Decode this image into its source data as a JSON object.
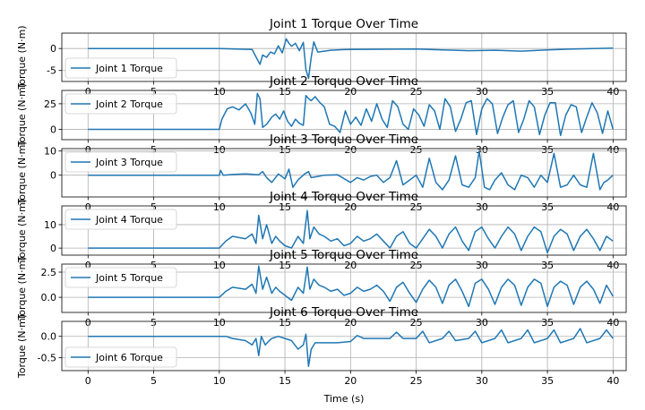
{
  "chart_data": [
    {
      "type": "line",
      "title": "Joint 1 Torque Over Time",
      "ylabel": "Torque (N·m)",
      "xlabel": "",
      "xlim": [
        -2,
        41
      ],
      "ylim": [
        -7.5,
        3.5
      ],
      "yticks": [
        0,
        -5
      ],
      "xticks": [
        0,
        5,
        10,
        15,
        20,
        25,
        30,
        35,
        40
      ],
      "grid": true,
      "legend_position": "lower-left",
      "series": [
        {
          "name": "Joint 1 Torque",
          "x": [
            0,
            10,
            12.5,
            12.9,
            13.1,
            13.3,
            13.6,
            13.9,
            14.2,
            14.5,
            14.8,
            15.1,
            15.3,
            15.5,
            15.8,
            16.1,
            16.4,
            16.6,
            16.8,
            17.0,
            17.2,
            17.5,
            18,
            18.5,
            19,
            20,
            25,
            27,
            29,
            31,
            33,
            35,
            37,
            40
          ],
          "y": [
            0,
            0,
            -0.2,
            -2.5,
            -3.6,
            -1.5,
            -2.0,
            -0.8,
            -1.2,
            0.6,
            -1.0,
            2.2,
            1.2,
            0.5,
            1.2,
            -0.5,
            1.4,
            -4.8,
            -6.8,
            -2.0,
            1.5,
            -0.8,
            -0.6,
            -0.4,
            -0.3,
            -0.2,
            -0.1,
            -0.3,
            -0.5,
            -0.4,
            -0.6,
            -0.3,
            -0.1,
            0.1
          ]
        }
      ]
    },
    {
      "type": "line",
      "title": "Joint 2 Torque Over Time",
      "ylabel": "Torque (N·m)",
      "xlabel": "",
      "xlim": [
        -2,
        41
      ],
      "ylim": [
        -10,
        38
      ],
      "yticks": [
        25,
        0
      ],
      "xticks": [
        0,
        5,
        10,
        15,
        20,
        25,
        30,
        35,
        40
      ],
      "grid": true,
      "legend_position": "upper-left",
      "series": [
        {
          "name": "Joint 2 Torque",
          "x": [
            0,
            10,
            10.2,
            10.6,
            11,
            11.5,
            12,
            12.4,
            12.7,
            12.9,
            13.1,
            13.3,
            13.6,
            14,
            14.3,
            14.6,
            14.9,
            15.2,
            15.5,
            15.8,
            16.1,
            16.4,
            16.6,
            16.8,
            17.0,
            17.3,
            17.6,
            18,
            18.4,
            18.8,
            19.2,
            19.6,
            20,
            20.4,
            20.8,
            21.2,
            21.6,
            22,
            22.4,
            22.8,
            23.2,
            23.6,
            24,
            24.4,
            24.8,
            25.2,
            25.6,
            26,
            26.4,
            26.8,
            27.2,
            27.6,
            28,
            28.4,
            28.8,
            29.2,
            29.6,
            30,
            30.4,
            30.8,
            31.2,
            31.6,
            32,
            32.4,
            32.8,
            33.2,
            33.6,
            34,
            34.4,
            34.8,
            35.2,
            35.6,
            36,
            36.4,
            36.8,
            37.2,
            37.6,
            38,
            38.4,
            38.8,
            39.2,
            39.6,
            40
          ],
          "y": [
            0,
            0,
            10,
            20,
            22,
            19,
            25,
            16,
            5,
            35,
            30,
            2,
            5,
            12,
            15,
            10,
            18,
            8,
            3,
            10,
            6,
            4,
            33,
            30,
            28,
            32,
            27,
            22,
            5,
            3,
            -3,
            18,
            5,
            12,
            4,
            20,
            8,
            25,
            10,
            2,
            28,
            22,
            5,
            0,
            20,
            14,
            3,
            24,
            18,
            0,
            30,
            22,
            -2,
            10,
            26,
            28,
            -5,
            20,
            30,
            25,
            -4,
            12,
            24,
            28,
            -3,
            10,
            28,
            22,
            -5,
            14,
            26,
            26,
            -6,
            14,
            24,
            22,
            -3,
            12,
            26,
            16,
            -4,
            18,
            0
          ]
        }
      ]
    },
    {
      "type": "line",
      "title": "Joint 3 Torque Over Time",
      "ylabel": "Torque (N·m)",
      "xlabel": "",
      "xlim": [
        -2,
        41
      ],
      "ylim": [
        -9,
        11
      ],
      "yticks": [
        10,
        0
      ],
      "xticks": [
        0,
        5,
        10,
        15,
        20,
        25,
        30,
        35,
        40
      ],
      "grid": true,
      "legend_position": "upper-left",
      "series": [
        {
          "name": "Joint 3 Torque",
          "x": [
            0,
            10,
            10.1,
            10.3,
            11,
            12,
            13,
            13.3,
            13.6,
            14,
            14.5,
            15,
            15.3,
            15.6,
            16,
            16.5,
            16.8,
            17,
            17.5,
            18,
            19,
            20,
            20.5,
            21,
            21.5,
            22,
            22.5,
            23,
            23.5,
            24,
            24.5,
            25,
            25.5,
            26,
            26.5,
            27,
            27.5,
            28,
            28.5,
            29,
            29.5,
            29.8,
            30.2,
            30.6,
            31,
            31.5,
            32,
            32.5,
            33,
            33.5,
            34,
            34.5,
            35,
            35.5,
            36,
            36.5,
            37,
            37.5,
            38,
            38.5,
            39,
            39.3,
            39.6,
            40
          ],
          "y": [
            0,
            0,
            2,
            0,
            0.3,
            0.5,
            0.2,
            1.5,
            -1,
            -3,
            0.5,
            -1.5,
            2.5,
            -5,
            -2,
            0.5,
            1.5,
            -1,
            -0.5,
            0,
            0.2,
            -3,
            -1,
            -2,
            -0.5,
            0,
            -3,
            -1,
            6,
            -4,
            -2,
            0,
            -5,
            7,
            -3,
            -6,
            -2,
            8,
            -4,
            -5,
            -1,
            10,
            -5,
            -6,
            -2,
            1,
            -4,
            -6,
            0,
            -1,
            -5,
            0,
            -3,
            9,
            -5,
            -4,
            0,
            -4,
            -5,
            9,
            -6,
            -3,
            -2,
            0
          ]
        }
      ]
    },
    {
      "type": "line",
      "title": "Joint 4 Torque Over Time",
      "ylabel": "Torque (N·m)",
      "xlabel": "",
      "xlim": [
        -2,
        41
      ],
      "ylim": [
        -3,
        18
      ],
      "yticks": [
        10,
        0
      ],
      "xticks": [
        0,
        5,
        10,
        15,
        20,
        25,
        30,
        35,
        40
      ],
      "grid": true,
      "legend_position": "upper-left",
      "series": [
        {
          "name": "Joint 4 Torque",
          "x": [
            0,
            10,
            10.5,
            11,
            12,
            12.5,
            12.8,
            13.0,
            13.3,
            13.6,
            14,
            14.3,
            14.6,
            15,
            15.5,
            16,
            16.4,
            16.7,
            16.9,
            17.2,
            17.6,
            18,
            18.5,
            19,
            19.5,
            20,
            20.5,
            21,
            21.5,
            22,
            22.5,
            23,
            23.5,
            24,
            24.5,
            25,
            25.5,
            26,
            26.5,
            27,
            27.5,
            28,
            28.5,
            29,
            29.5,
            30,
            30.5,
            31,
            31.5,
            32,
            32.5,
            33,
            33.5,
            34,
            34.5,
            35,
            35.5,
            36,
            36.5,
            37,
            37.5,
            38,
            38.5,
            39,
            39.5,
            40
          ],
          "y": [
            0,
            0,
            3,
            5,
            4,
            6,
            2,
            14,
            4,
            10,
            2,
            5,
            3,
            1,
            0,
            5,
            2,
            16,
            4,
            9,
            6,
            5,
            3,
            4,
            1,
            2,
            5,
            3,
            4,
            6,
            3,
            0,
            5,
            7,
            2,
            0,
            4,
            8,
            5,
            0,
            6,
            9,
            3,
            -1,
            7,
            9,
            4,
            0,
            5,
            9,
            6,
            -1,
            5,
            9,
            7,
            -2,
            5,
            8,
            6,
            -1,
            5,
            8,
            4,
            -1,
            5,
            3
          ]
        }
      ]
    },
    {
      "type": "line",
      "title": "Joint 5 Torque Over Time",
      "ylabel": "Torque (N·m)",
      "xlabel": "",
      "xlim": [
        -2,
        41
      ],
      "ylim": [
        -1.5,
        3.3
      ],
      "yticks": [
        2.5,
        0.0
      ],
      "xticks": [
        0,
        5,
        10,
        15,
        20,
        25,
        30,
        35,
        40
      ],
      "grid": true,
      "legend_position": "upper-left",
      "series": [
        {
          "name": "Joint 5 Torque",
          "x": [
            0,
            10,
            10.5,
            11,
            12,
            12.5,
            12.8,
            13.0,
            13.3,
            13.6,
            14,
            14.3,
            14.6,
            15,
            15.5,
            16,
            16.4,
            16.7,
            16.9,
            17.2,
            17.6,
            18,
            18.5,
            19,
            19.5,
            20,
            20.5,
            21,
            21.5,
            22,
            22.5,
            23,
            23.5,
            24,
            24.5,
            25,
            25.5,
            26,
            26.5,
            27,
            27.5,
            28,
            28.5,
            29,
            29.5,
            30,
            30.5,
            31,
            31.5,
            32,
            32.5,
            33,
            33.5,
            34,
            34.5,
            35,
            35.5,
            36,
            36.5,
            37,
            37.5,
            38,
            38.5,
            39,
            39.5,
            40
          ],
          "y": [
            0,
            0,
            0.6,
            1.0,
            0.8,
            1.3,
            0.4,
            3.1,
            0.8,
            2.0,
            0.4,
            1.0,
            0.6,
            0.2,
            -0.3,
            1.0,
            0.4,
            3.0,
            0.8,
            1.8,
            1.2,
            1.0,
            0.6,
            0.8,
            0.2,
            0.4,
            1.0,
            0.6,
            0.8,
            1.2,
            0.6,
            -0.4,
            1.0,
            1.5,
            0.4,
            -0.5,
            0.8,
            1.7,
            1.0,
            -0.6,
            1.2,
            1.8,
            0.6,
            -0.9,
            1.4,
            1.8,
            0.8,
            -0.7,
            1.0,
            1.8,
            1.2,
            -0.8,
            1.0,
            1.8,
            1.4,
            -0.9,
            1.0,
            1.6,
            1.2,
            -0.7,
            1.0,
            1.6,
            0.8,
            -0.6,
            1.2,
            0.1
          ]
        }
      ]
    },
    {
      "type": "line",
      "title": "Joint 6 Torque Over Time",
      "ylabel": "Torque (N·m)",
      "xlabel": "Time (s)",
      "xlim": [
        -2,
        41
      ],
      "ylim": [
        -0.8,
        0.35
      ],
      "yticks": [
        0.0,
        -0.5
      ],
      "xticks": [
        0,
        5,
        10,
        15,
        20,
        25,
        30,
        35,
        40
      ],
      "grid": true,
      "legend_position": "lower-left",
      "series": [
        {
          "name": "Joint 6 Torque",
          "x": [
            0,
            10,
            10.5,
            11,
            12,
            12.5,
            12.8,
            13.0,
            13.2,
            13.5,
            13.8,
            14,
            14.5,
            15,
            15.5,
            16,
            16.4,
            16.6,
            16.8,
            17.0,
            17.3,
            17.6,
            18,
            19,
            20,
            20.5,
            21,
            22,
            23,
            23.5,
            24,
            25,
            25.5,
            26,
            27,
            27.5,
            28,
            29,
            29.5,
            30,
            31,
            31.5,
            32,
            33,
            33.5,
            34,
            35,
            35.5,
            36,
            37,
            37.5,
            38,
            39,
            39.5,
            40
          ],
          "y": [
            0,
            0,
            0,
            -0.05,
            -0.1,
            -0.2,
            -0.05,
            -0.45,
            0,
            -0.2,
            -0.1,
            -0.05,
            0,
            -0.05,
            -0.1,
            -0.3,
            -0.2,
            0.05,
            -0.7,
            -0.3,
            -0.15,
            -0.15,
            -0.15,
            -0.15,
            -0.12,
            0.02,
            -0.05,
            -0.05,
            -0.05,
            0.1,
            -0.05,
            -0.05,
            0.12,
            -0.15,
            -0.05,
            0.12,
            -0.1,
            -0.05,
            0.12,
            -0.15,
            -0.05,
            0.15,
            -0.15,
            -0.05,
            0.15,
            -0.15,
            -0.05,
            0.15,
            -0.15,
            -0.05,
            0.18,
            -0.15,
            -0.05,
            0.15,
            -0.05
          ]
        }
      ]
    }
  ]
}
